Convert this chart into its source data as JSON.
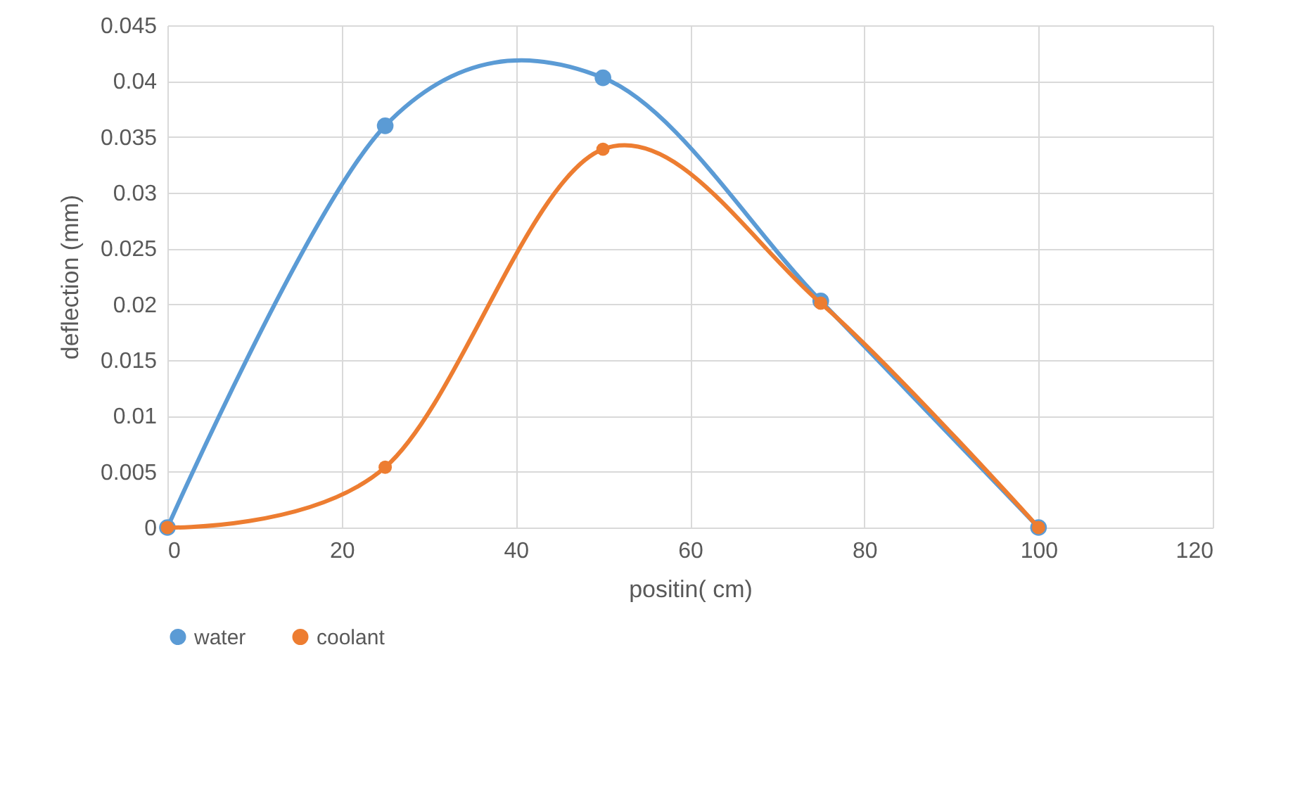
{
  "chart_data": {
    "type": "line",
    "xlabel": "positin( cm)",
    "ylabel": "deflection (mm)",
    "x": [
      0,
      25,
      50,
      75,
      100
    ],
    "series": [
      {
        "name": "water",
        "color": "#5b9bd5",
        "values": [
          0,
          0.036,
          0.0403,
          0.0203,
          0
        ]
      },
      {
        "name": "coolant",
        "color": "#ed7d31",
        "values": [
          0,
          0.0054,
          0.0339,
          0.0201,
          0
        ]
      }
    ],
    "xlim": [
      0,
      120
    ],
    "xticks": [
      0,
      20,
      40,
      60,
      80,
      100,
      120
    ],
    "ylim": [
      0,
      0.045
    ],
    "yticks": [
      0,
      0.005,
      0.01,
      0.015,
      0.02,
      0.025,
      0.03,
      0.035,
      0.04,
      0.045
    ],
    "grid": true,
    "legend": "bottom",
    "marker": "circle",
    "line_style": "solid"
  }
}
